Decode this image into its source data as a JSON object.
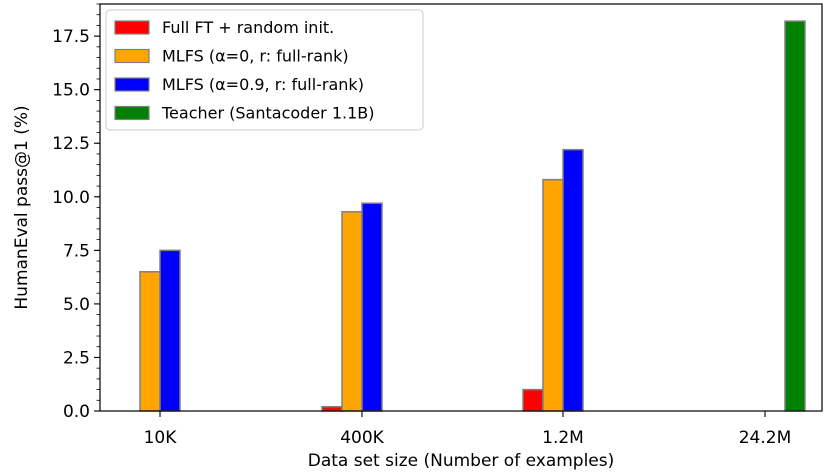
{
  "chart_data": {
    "type": "bar",
    "xlabel": "Data set size (Number of examples)",
    "ylabel": "HumanEval pass@1 (%)",
    "ylim": [
      0,
      19
    ],
    "yticks": [
      "0.0",
      "2.5",
      "5.0",
      "7.5",
      "10.0",
      "12.5",
      "15.0",
      "17.5"
    ],
    "categories": [
      "10K",
      "400K",
      "1.2M",
      "24.2M"
    ],
    "legend_position": "top-left",
    "grid": false,
    "series": [
      {
        "name": "Full FT + random init.",
        "color": "#ff0000",
        "values": [
          0.0,
          0.2,
          1.0,
          0.0
        ]
      },
      {
        "name": "MLFS (α=0, r: full-rank)",
        "color": "#ffa500",
        "values": [
          6.5,
          9.3,
          10.8,
          0.0
        ]
      },
      {
        "name": "MLFS (α=0.9, r: full-rank)",
        "color": "#0000ff",
        "values": [
          7.5,
          9.7,
          12.2,
          0.0
        ]
      },
      {
        "name": "Teacher (Santacoder 1.1B)",
        "color": "#008000",
        "values": [
          0.0,
          0.0,
          0.0,
          18.2
        ]
      }
    ]
  }
}
